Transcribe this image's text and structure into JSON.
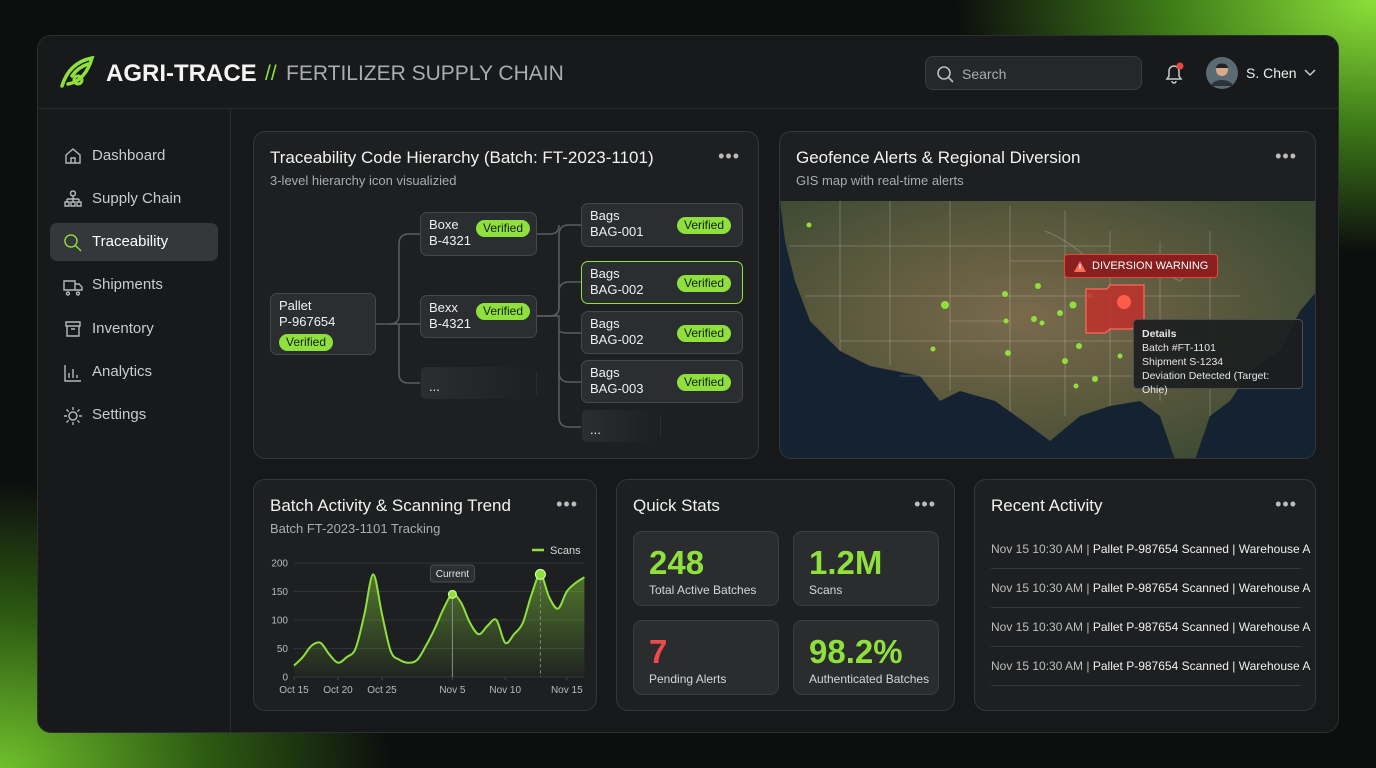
{
  "header": {
    "brand": "AGRI-TRACE",
    "separator": "//",
    "subtitle": "FERTILIZER SUPPLY CHAIN",
    "search_placeholder": "Search",
    "user": "S. Chen"
  },
  "nav": [
    "Dashboard",
    "Supply Chain",
    "Traceability",
    "Shipments",
    "Inventory",
    "Analytics",
    "Settings"
  ],
  "tree": {
    "title": "Traceability Code Hierarchy (Batch: FT-2023-1101)",
    "subtitle": "3-level hierarchy icon visualizied",
    "pallet": {
      "label": "Pallet",
      "code": "P-967654",
      "status": "Verified"
    },
    "boxes": [
      {
        "label": "Boxe",
        "code": "B-4321",
        "status": "Verified"
      },
      {
        "label": "Bexx",
        "code": "B-4321",
        "status": "Verified"
      },
      {
        "label": "..."
      }
    ],
    "bags": [
      {
        "label": "Bags",
        "code": "BAG-001",
        "status": "Verified"
      },
      {
        "label": "Bags",
        "code": "BAG-002",
        "status": "Verified"
      },
      {
        "label": "Bags",
        "code": "BAG-002",
        "status": "Verified"
      },
      {
        "label": "Bags",
        "code": "BAG-003",
        "status": "Verified"
      },
      {
        "label": "..."
      }
    ]
  },
  "map": {
    "title": "Geofence Alerts & Regional Diversion",
    "subtitle": "GIS map with real-time alerts",
    "warning": "DIVERSION WARNING",
    "details": {
      "heading": "Details",
      "lines": [
        "Batch #FT-1101",
        "Shipment S-1234",
        "Deviation Detected (Target: Ohie)"
      ]
    }
  },
  "chart_data": {
    "type": "line",
    "title": "Batch Activity & Scanning Trend",
    "subtitle": "Batch FT-2023-1101 Tracking",
    "annotation": "Current",
    "xlim": [
      0,
      33
    ],
    "xticks": [
      {
        "value": 0,
        "label": "Oct 15"
      },
      {
        "value": 5,
        "label": "Oct 20"
      },
      {
        "value": 10,
        "label": "Oct 25"
      },
      {
        "value": 18,
        "label": "Nov 5"
      },
      {
        "value": 24,
        "label": "Nov 10"
      },
      {
        "value": 31,
        "label": "Nov 15"
      }
    ],
    "ylim": [
      0,
      200
    ],
    "yticks": [
      0,
      50,
      100,
      150,
      200
    ],
    "grid": true,
    "legend": "top-right",
    "series": [
      {
        "name": "Scans",
        "color": "#8fe03c",
        "values": [
          20,
          35,
          55,
          60,
          40,
          25,
          35,
          50,
          110,
          180,
          110,
          45,
          30,
          25,
          30,
          55,
          85,
          120,
          145,
          130,
          95,
          75,
          90,
          100,
          60,
          75,
          95,
          145,
          180,
          140,
          120,
          150,
          165,
          175
        ]
      }
    ]
  },
  "stats": {
    "title": "Quick Stats",
    "items": [
      {
        "value": "248",
        "label": "Total Active Batches"
      },
      {
        "value": "1.2M",
        "label": "Scans"
      },
      {
        "value": "7",
        "label": "Pending Alerts"
      },
      {
        "value": "98.2%",
        "label": "Authenticated Batches"
      }
    ]
  },
  "activity": {
    "title": "Recent Activity",
    "rows": [
      {
        "time": "Nov 15 10:30 AM |",
        "event": "Pallet P-987654 Scanned | Warehouse A"
      },
      {
        "time": "Nov 15 10:30 AM |",
        "event": "Pallet P-987654 Scanned | Warehouse A"
      },
      {
        "time": "Nov 15 10:30 AM |",
        "event": "Pallet P-987654 Scanned | Warehouse A"
      },
      {
        "time": "Nov 15 10:30 AM |",
        "event": "Pallet P-987654 Scanned | Warehouse A"
      }
    ]
  }
}
